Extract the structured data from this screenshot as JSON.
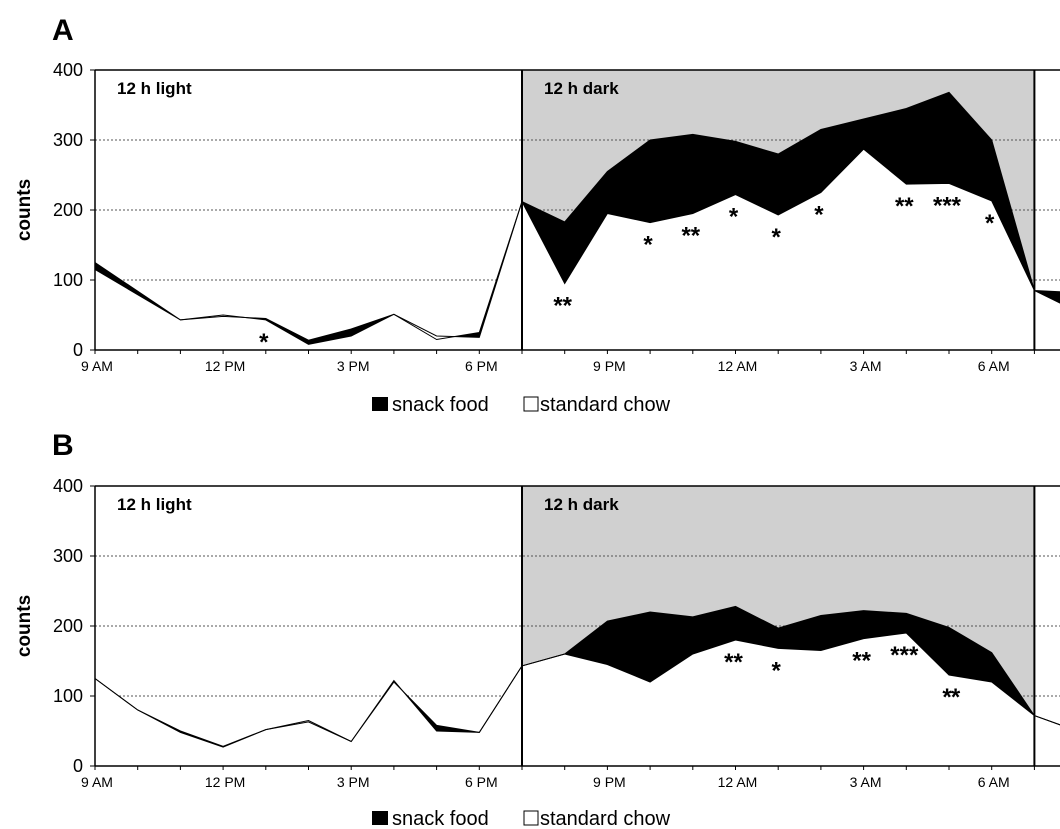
{
  "chart_data": [
    {
      "panel": "A",
      "type": "area",
      "ylabel": "counts",
      "ylim": [
        0,
        400
      ],
      "yticks": [
        "0",
        "100",
        "200",
        "300",
        "400"
      ],
      "grid": "horizontal dotted",
      "xticks": [
        "9 AM",
        "12 PM",
        "3 PM",
        "6 PM",
        "9 PM",
        "12 AM",
        "3 AM",
        "6 AM"
      ],
      "phases": [
        {
          "label": "12 h light",
          "from_hour": 0,
          "to_hour": 10,
          "shaded": false
        },
        {
          "label": "12 h dark",
          "from_hour": 10,
          "to_hour": 22,
          "shaded": true
        }
      ],
      "x_hours": [
        0,
        2,
        3,
        4,
        5,
        6,
        7,
        8,
        9,
        10,
        11,
        12,
        13,
        14,
        15,
        16,
        17,
        18,
        19,
        20,
        21,
        22,
        23
      ],
      "series": [
        {
          "name": "snack food",
          "values": [
            125,
            43,
            48,
            45,
            14,
            30,
            51,
            15,
            25,
            212,
            183,
            255,
            300,
            308,
            298,
            280,
            315,
            330,
            345,
            368,
            300,
            85,
            82
          ]
        },
        {
          "name": "standard chow",
          "values": [
            115,
            43,
            50,
            43,
            8,
            20,
            51,
            20,
            18,
            212,
            95,
            195,
            182,
            195,
            222,
            193,
            225,
            287,
            237,
            238,
            213,
            85,
            55
          ]
        }
      ],
      "significance": [
        {
          "hour": 4,
          "label": "*"
        },
        {
          "hour": 11,
          "label": "**"
        },
        {
          "hour": 13,
          "label": "*"
        },
        {
          "hour": 14,
          "label": "**"
        },
        {
          "hour": 15,
          "label": "*"
        },
        {
          "hour": 16,
          "label": "*"
        },
        {
          "hour": 17,
          "label": "*"
        },
        {
          "hour": 19,
          "label": "**"
        },
        {
          "hour": 20,
          "label": "***"
        },
        {
          "hour": 21,
          "label": "*"
        }
      ],
      "legend": [
        "snack food",
        "standard chow"
      ],
      "legend_position": "bottom"
    },
    {
      "panel": "B",
      "type": "area",
      "ylabel": "counts",
      "ylim": [
        0,
        400
      ],
      "yticks": [
        "0",
        "100",
        "200",
        "300",
        "400"
      ],
      "grid": "horizontal dotted",
      "xticks": [
        "9 AM",
        "12 PM",
        "3 PM",
        "6 PM",
        "9 PM",
        "12 AM",
        "3 AM",
        "6 AM"
      ],
      "phases": [
        {
          "label": "12 h light",
          "from_hour": 0,
          "to_hour": 10,
          "shaded": false
        },
        {
          "label": "12 h dark",
          "from_hour": 10,
          "to_hour": 22,
          "shaded": true
        }
      ],
      "x_hours": [
        0,
        1,
        2,
        3,
        4,
        5,
        6,
        7,
        8,
        9,
        10,
        11,
        12,
        13,
        14,
        15,
        16,
        17,
        18,
        19,
        20,
        21,
        22,
        23
      ],
      "series": [
        {
          "name": "snack food",
          "values": [
            125,
            80,
            50,
            28,
            52,
            63,
            35,
            120,
            58,
            48,
            143,
            160,
            207,
            220,
            213,
            228,
            197,
            215,
            222,
            218,
            198,
            162,
            72,
            50
          ]
        },
        {
          "name": "standard chow",
          "values": [
            125,
            80,
            48,
            27,
            52,
            65,
            35,
            122,
            50,
            48,
            143,
            160,
            145,
            120,
            160,
            180,
            168,
            165,
            182,
            190,
            130,
            120,
            72,
            50
          ]
        }
      ],
      "significance": [
        {
          "hour": 15,
          "label": "**"
        },
        {
          "hour": 16,
          "label": "*"
        },
        {
          "hour": 18,
          "label": "**"
        },
        {
          "hour": 19,
          "label": "***"
        },
        {
          "hour": 20,
          "label": "*"
        },
        {
          "hour": 30,
          "label": "*"
        }
      ],
      "legend": [
        "snack food",
        "standard chow"
      ],
      "legend_position": "bottom"
    }
  ]
}
